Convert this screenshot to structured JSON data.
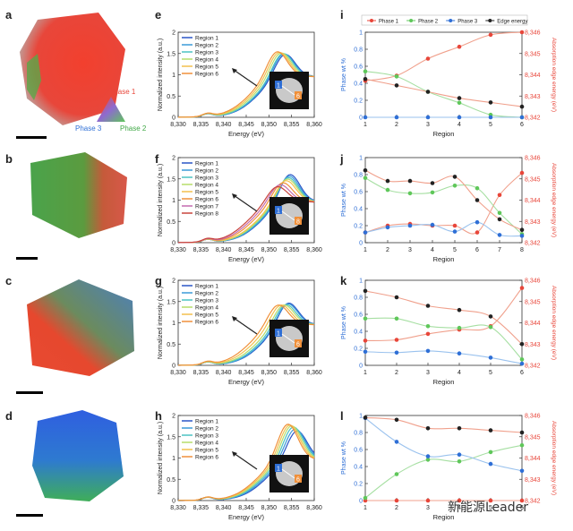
{
  "panels": {
    "a": "a",
    "b": "b",
    "c": "c",
    "d": "d",
    "e": "e",
    "f": "f",
    "g": "g",
    "h": "h",
    "i": "i",
    "j": "j",
    "k": "k",
    "l": "l"
  },
  "triangle": {
    "phase1": "Phase 1",
    "phase2": "Phase 2",
    "phase3": "Phase 3"
  },
  "colors": {
    "phase1": "#e8463a",
    "phase2": "#5fc75a",
    "phase3": "#2f6fd6",
    "edge": "#222222",
    "region_palette": [
      "#2b56c7",
      "#3a9ad9",
      "#4cc2c2",
      "#b7dd6a",
      "#f2c14e",
      "#f0903a",
      "#c46bb0",
      "#c9453e"
    ]
  },
  "watermark": "新能源Leader",
  "chart_data": [
    {
      "id": "e",
      "type": "line",
      "xlabel": "Energy (eV)",
      "ylabel": "Normalized intensity (a.u.)",
      "xlim": [
        8330,
        8360
      ],
      "ylim": [
        0,
        2
      ],
      "xticks": [
        "8,330",
        "8,335",
        "8,340",
        "8,345",
        "8,350",
        "8,355",
        "8,360"
      ],
      "yticks": [
        "0",
        "0.5",
        "1",
        "1.5",
        "2"
      ],
      "legend": "top-left",
      "inset_labels": [
        "1",
        "6"
      ],
      "series": [
        {
          "name": "Region 1",
          "x0": 8344.2,
          "peak": 8353.3,
          "ph": 1.62
        },
        {
          "name": "Region 2",
          "x0": 8344.0,
          "peak": 8353.0,
          "ph": 1.64
        },
        {
          "name": "Region 3",
          "x0": 8343.8,
          "peak": 8352.8,
          "ph": 1.65
        },
        {
          "name": "Region 4",
          "x0": 8343.3,
          "peak": 8352.4,
          "ph": 1.66
        },
        {
          "name": "Region 5",
          "x0": 8342.8,
          "peak": 8352.0,
          "ph": 1.67
        },
        {
          "name": "Region 6",
          "x0": 8342.3,
          "peak": 8351.6,
          "ph": 1.68
        }
      ]
    },
    {
      "id": "f",
      "type": "line",
      "xlabel": "Energy (eV)",
      "ylabel": "Normalized intensity (a.u.)",
      "xlim": [
        8330,
        8360
      ],
      "ylim": [
        0,
        2
      ],
      "xticks": [
        "8,330",
        "8,335",
        "8,340",
        "8,345",
        "8,350",
        "8,355",
        "8,360"
      ],
      "yticks": [
        "0",
        "0.5",
        "1",
        "1.5",
        "2"
      ],
      "legend": "top-left",
      "inset_labels": [
        "1",
        "8"
      ],
      "series": [
        {
          "name": "Region 1",
          "x0": 8345.0,
          "peak": 8354.4,
          "ph": 1.74
        },
        {
          "name": "Region 2",
          "x0": 8344.8,
          "peak": 8354.2,
          "ph": 1.7
        },
        {
          "name": "Region 3",
          "x0": 8344.6,
          "peak": 8354.0,
          "ph": 1.66
        },
        {
          "name": "Region 4",
          "x0": 8344.3,
          "peak": 8353.8,
          "ph": 1.62
        },
        {
          "name": "Region 5",
          "x0": 8344.0,
          "peak": 8353.5,
          "ph": 1.58
        },
        {
          "name": "Region 6",
          "x0": 8343.2,
          "peak": 8352.8,
          "ph": 1.52
        },
        {
          "name": "Region 7",
          "x0": 8342.6,
          "peak": 8352.2,
          "ph": 1.47
        },
        {
          "name": "Region 8",
          "x0": 8342.0,
          "peak": 8351.6,
          "ph": 1.42
        }
      ]
    },
    {
      "id": "g",
      "type": "line",
      "xlabel": "Energy (eV)",
      "ylabel": "Normalized intensity (a.u.)",
      "xlim": [
        8330,
        8360
      ],
      "ylim": [
        0,
        2
      ],
      "xticks": [
        "8,330",
        "8,335",
        "8,340",
        "8,345",
        "8,350",
        "8,355",
        "8,360"
      ],
      "yticks": [
        "0",
        "0.5",
        "1",
        "1.5",
        "2"
      ],
      "legend": "top-left",
      "inset_labels": [
        "1",
        "6"
      ],
      "series": [
        {
          "name": "Region 1",
          "x0": 8345.2,
          "peak": 8354.0,
          "ph": 1.62
        },
        {
          "name": "Region 2",
          "x0": 8345.0,
          "peak": 8353.8,
          "ph": 1.6
        },
        {
          "name": "Region 3",
          "x0": 8344.6,
          "peak": 8353.4,
          "ph": 1.58
        },
        {
          "name": "Region 4",
          "x0": 8344.0,
          "peak": 8353.0,
          "ph": 1.56
        },
        {
          "name": "Region 5",
          "x0": 8343.2,
          "peak": 8352.4,
          "ph": 1.55
        },
        {
          "name": "Region 6",
          "x0": 8342.4,
          "peak": 8351.8,
          "ph": 1.54
        }
      ]
    },
    {
      "id": "h",
      "type": "line",
      "xlabel": "Energy (eV)",
      "ylabel": "Normalized intensity (a.u.)",
      "xlim": [
        8330,
        8360
      ],
      "ylim": [
        0,
        2
      ],
      "xticks": [
        "8,330",
        "8,335",
        "8,340",
        "8,345",
        "8,350",
        "8,355",
        "8,360"
      ],
      "yticks": [
        "0",
        "0.5",
        "1",
        "1.5",
        "2"
      ],
      "legend": "top-left",
      "inset_labels": [
        "1",
        "6"
      ],
      "series": [
        {
          "name": "Region 1",
          "x0": 8346.0,
          "peak": 8356.0,
          "ph": 1.75
        },
        {
          "name": "Region 2",
          "x0": 8345.6,
          "peak": 8355.6,
          "ph": 1.8
        },
        {
          "name": "Region 3",
          "x0": 8345.2,
          "peak": 8355.2,
          "ph": 1.85
        },
        {
          "name": "Region 4",
          "x0": 8344.8,
          "peak": 8354.8,
          "ph": 1.88
        },
        {
          "name": "Region 5",
          "x0": 8344.4,
          "peak": 8354.4,
          "ph": 1.9
        },
        {
          "name": "Region 6",
          "x0": 8344.0,
          "peak": 8354.0,
          "ph": 1.92
        }
      ]
    },
    {
      "id": "i",
      "type": "line",
      "xlabel": "Region",
      "ylabel": "Phase wt %",
      "y2label": "Absorption edge energy (eV)",
      "x": [
        1,
        2,
        3,
        4,
        5,
        6
      ],
      "xlim": [
        1,
        6
      ],
      "ylim": [
        0,
        1
      ],
      "y2lim": [
        8342,
        8346
      ],
      "xticks": [
        "1",
        "2",
        "3",
        "4",
        "5",
        "6"
      ],
      "yticks": [
        "0",
        "0.2",
        "0.4",
        "0.6",
        "0.8",
        "1"
      ],
      "y2ticks": [
        "8,342",
        "8,343",
        "8,344",
        "8,345",
        "8,346"
      ],
      "legend": "top",
      "series": [
        {
          "name": "Phase 1",
          "values": [
            0.43,
            0.49,
            0.69,
            0.83,
            0.97,
            1.0
          ]
        },
        {
          "name": "Phase 2",
          "values": [
            0.54,
            0.48,
            0.3,
            0.17,
            0.03,
            0.0
          ]
        },
        {
          "name": "Phase 3",
          "values": [
            0.0,
            0.0,
            0.0,
            0.0,
            0.0,
            0.0
          ]
        },
        {
          "name": "Edge energy",
          "axis": "right",
          "values": [
            8343.8,
            8343.5,
            8343.2,
            8342.9,
            8342.7,
            8342.5
          ]
        }
      ]
    },
    {
      "id": "j",
      "type": "line",
      "xlabel": "Region",
      "ylabel": "Phase wt %",
      "y2label": "Absorption edge energy (eV)",
      "x": [
        1,
        2,
        3,
        4,
        5,
        6,
        7,
        8
      ],
      "xlim": [
        1,
        8
      ],
      "ylim": [
        0,
        1
      ],
      "y2lim": [
        8342,
        8346
      ],
      "xticks": [
        "1",
        "2",
        "3",
        "4",
        "5",
        "6",
        "7",
        "8"
      ],
      "yticks": [
        "0",
        "0.2",
        "0.4",
        "0.6",
        "0.8",
        "1"
      ],
      "y2ticks": [
        "8,342",
        "8,343",
        "8,344",
        "8,345",
        "8,346"
      ],
      "series": [
        {
          "name": "Phase 1",
          "values": [
            0.12,
            0.2,
            0.22,
            0.2,
            0.2,
            0.12,
            0.56,
            0.82
          ]
        },
        {
          "name": "Phase 2",
          "values": [
            0.76,
            0.62,
            0.58,
            0.59,
            0.67,
            0.64,
            0.35,
            0.1
          ]
        },
        {
          "name": "Phase 3",
          "values": [
            0.12,
            0.18,
            0.2,
            0.21,
            0.13,
            0.24,
            0.09,
            0.08
          ]
        },
        {
          "name": "Edge energy",
          "axis": "right",
          "values": [
            8345.4,
            8344.9,
            8344.9,
            8344.8,
            8345.1,
            8344.0,
            8343.1,
            8342.6
          ]
        }
      ]
    },
    {
      "id": "k",
      "type": "line",
      "xlabel": "Region",
      "ylabel": "Phase wt %",
      "y2label": "Absorption edge energy (eV)",
      "x": [
        1,
        2,
        3,
        4,
        5,
        6
      ],
      "xlim": [
        1,
        6
      ],
      "ylim": [
        0,
        1
      ],
      "y2lim": [
        8342,
        8346
      ],
      "xticks": [
        "1",
        "2",
        "3",
        "4",
        "5",
        "6"
      ],
      "yticks": [
        "0",
        "0.2",
        "0.4",
        "0.6",
        "0.8",
        "1"
      ],
      "y2ticks": [
        "8,342",
        "8,343",
        "8,344",
        "8,345",
        "8,346"
      ],
      "series": [
        {
          "name": "Phase 1",
          "values": [
            0.29,
            0.3,
            0.37,
            0.42,
            0.46,
            0.91
          ]
        },
        {
          "name": "Phase 2",
          "values": [
            0.55,
            0.55,
            0.46,
            0.44,
            0.45,
            0.07
          ]
        },
        {
          "name": "Phase 3",
          "values": [
            0.16,
            0.15,
            0.17,
            0.14,
            0.09,
            0.02
          ]
        },
        {
          "name": "Edge energy",
          "axis": "right",
          "values": [
            8345.5,
            8345.2,
            8344.8,
            8344.6,
            8344.3,
            8343.0
          ]
        }
      ]
    },
    {
      "id": "l",
      "type": "line",
      "xlabel": "Region",
      "ylabel": "Phase wt %",
      "y2label": "Absorption edge energy (eV)",
      "x": [
        1,
        2,
        3,
        4,
        5,
        6
      ],
      "xlim": [
        1,
        6
      ],
      "ylim": [
        0,
        1
      ],
      "y2lim": [
        8342,
        8346
      ],
      "xticks": [
        "1",
        "2",
        "3",
        "4",
        "5",
        "6"
      ],
      "yticks": [
        "0",
        "0.2",
        "0.4",
        "0.6",
        "0.8",
        "1"
      ],
      "y2ticks": [
        "8,342",
        "8,343",
        "8,344",
        "8,345",
        "8,346"
      ],
      "series": [
        {
          "name": "Phase 1",
          "values": [
            0.0,
            0.0,
            0.0,
            0.0,
            0.0,
            0.0
          ]
        },
        {
          "name": "Phase 2",
          "values": [
            0.03,
            0.31,
            0.48,
            0.46,
            0.57,
            0.65
          ]
        },
        {
          "name": "Phase 3",
          "values": [
            0.97,
            0.69,
            0.52,
            0.54,
            0.43,
            0.35
          ]
        },
        {
          "name": "Edge energy",
          "axis": "right",
          "values": [
            8345.9,
            8345.8,
            8345.4,
            8345.4,
            8345.3,
            8345.2
          ]
        }
      ]
    }
  ]
}
